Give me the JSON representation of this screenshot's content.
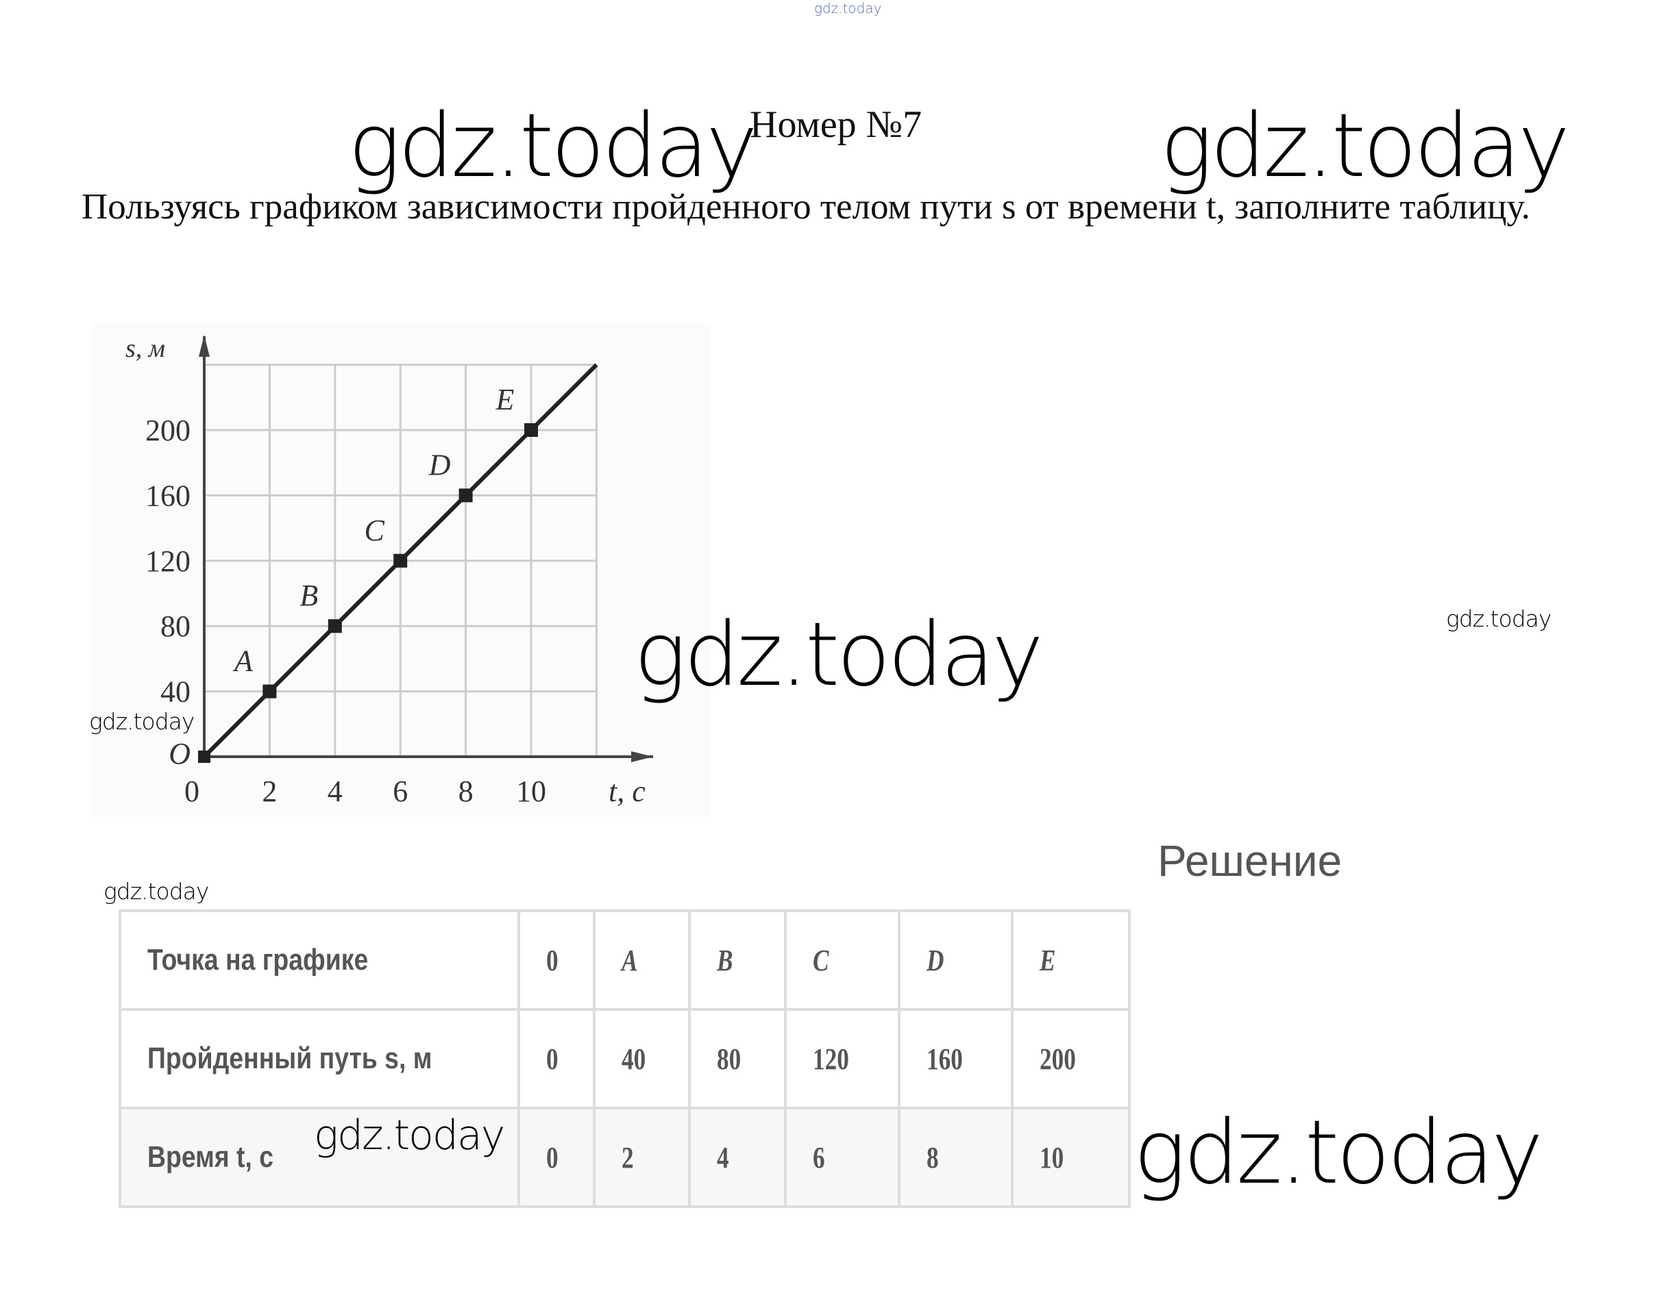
{
  "watermarks": {
    "top_tiny": "gdz.today",
    "big": [
      "gdz.today",
      "gdz.today",
      "gdz.today",
      "gdz.today"
    ],
    "small": [
      "gdz.today",
      "gdz.today",
      "gdz.today",
      "gdz.today"
    ]
  },
  "title": "Номер №7",
  "task": "Пользуясь графиком зависимости пройденного телом пути s от времени t, заполните таблицу.",
  "chart_data": {
    "type": "line",
    "title": "",
    "xlabel": "t, с",
    "ylabel": "s, м",
    "origin_label": "O",
    "x_ticks": [
      0,
      2,
      4,
      6,
      8,
      10
    ],
    "y_ticks": [
      40,
      80,
      120,
      160,
      200
    ],
    "xlim": [
      0,
      12
    ],
    "ylim": [
      0,
      240
    ],
    "grid": true,
    "line": {
      "x": [
        0,
        12
      ],
      "y": [
        0,
        240
      ]
    },
    "points": [
      {
        "label": "A",
        "x": 2,
        "y": 40
      },
      {
        "label": "B",
        "x": 4,
        "y": 80
      },
      {
        "label": "C",
        "x": 6,
        "y": 120
      },
      {
        "label": "D",
        "x": 8,
        "y": 160
      },
      {
        "label": "E",
        "x": 10,
        "y": 200
      }
    ]
  },
  "solution_heading": "Решение",
  "table": {
    "rows": [
      {
        "label": "Точка на графике",
        "cells": [
          "0",
          "A",
          "B",
          "C",
          "D",
          "E"
        ],
        "italic": true
      },
      {
        "label": "Пройденный путь s, м",
        "cells": [
          "0",
          "40",
          "80",
          "120",
          "160",
          "200"
        ]
      },
      {
        "label": "Время t, с",
        "cells": [
          "0",
          "2",
          "4",
          "6",
          "8",
          "10"
        ]
      }
    ]
  }
}
